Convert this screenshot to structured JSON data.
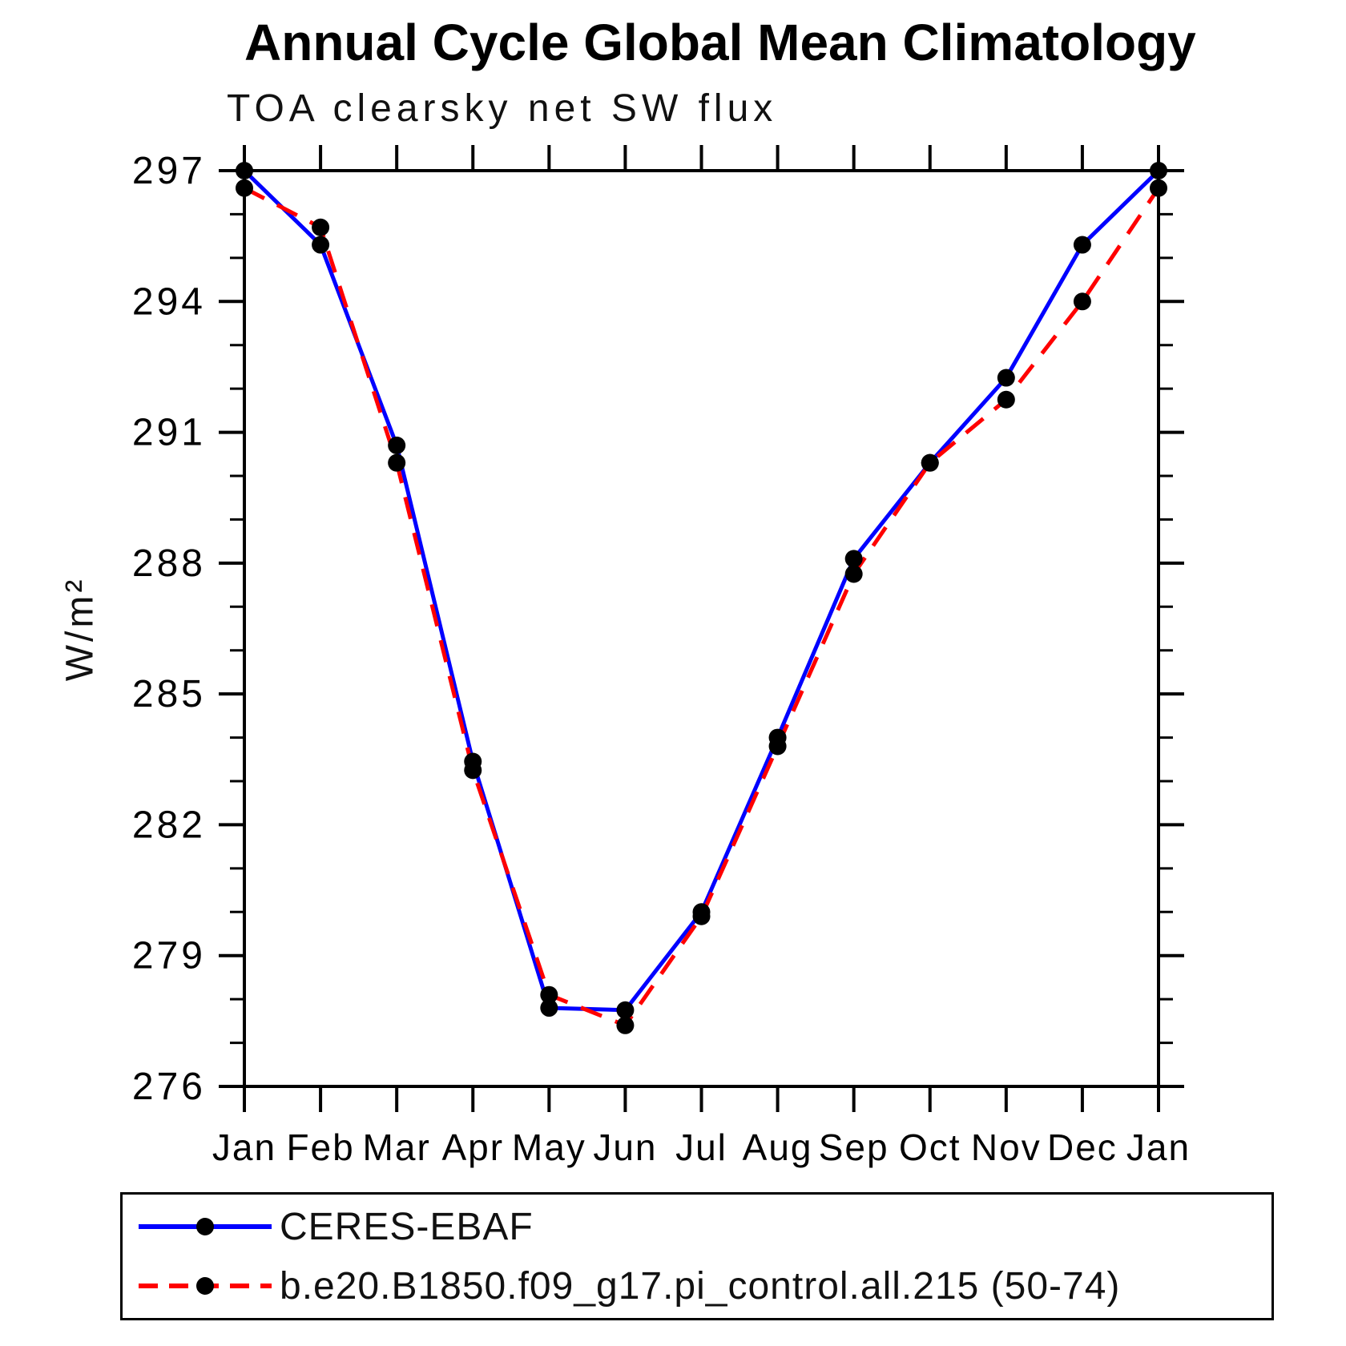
{
  "title": "Annual Cycle Global Mean Climatology",
  "subtitle": "TOA clearsky net SW flux",
  "chart_data": {
    "type": "line",
    "title": "Annual Cycle Global Mean Climatology",
    "subtitle": "TOA clearsky net SW flux",
    "xlabel": "",
    "ylabel": "W/m²",
    "categories": [
      "Jan",
      "Feb",
      "Mar",
      "Apr",
      "May",
      "Jun",
      "Jul",
      "Aug",
      "Sep",
      "Oct",
      "Nov",
      "Dec",
      "Jan"
    ],
    "ylim": [
      276,
      297
    ],
    "ytick_major": [
      276,
      279,
      282,
      285,
      288,
      291,
      294,
      297
    ],
    "ytick_minor_step": 1,
    "grid": false,
    "legend_position": "bottom-box",
    "axis_color": "#000000",
    "marker": "filled-circle",
    "series": [
      {
        "name": "CERES-EBAF",
        "color": "#0000ff",
        "style": "solid",
        "marker_color": "#000000",
        "values": [
          297.0,
          295.3,
          290.7,
          283.45,
          277.8,
          277.75,
          280.0,
          284.0,
          288.1,
          290.3,
          292.25,
          295.3,
          297.0
        ]
      },
      {
        "name": "b.e20.B1850.f09_g17.pi_control.all.215 (50-74)",
        "color": "#ff0000",
        "style": "dashed",
        "marker_color": "#000000",
        "values": [
          296.6,
          295.7,
          290.3,
          283.25,
          278.1,
          277.4,
          279.9,
          283.8,
          287.75,
          290.3,
          291.75,
          294.0,
          296.6
        ]
      }
    ]
  }
}
